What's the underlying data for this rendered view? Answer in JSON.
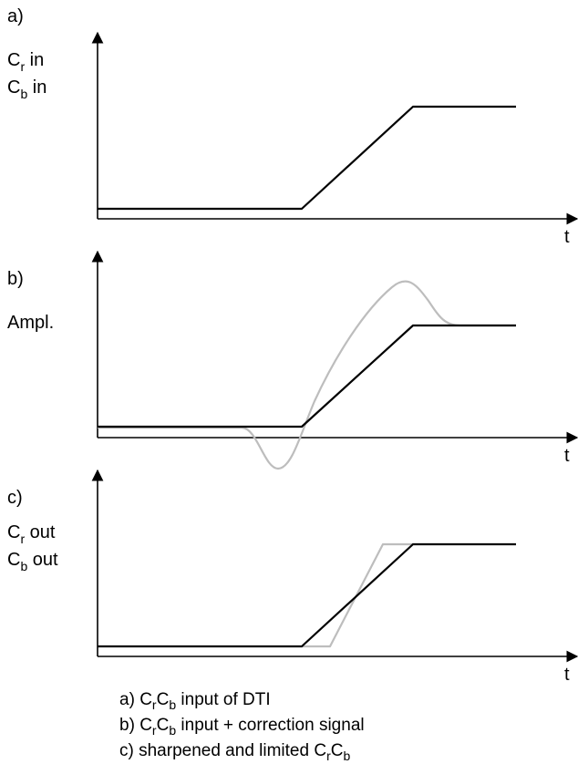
{
  "panels": [
    {
      "id": "a",
      "tag": "a)",
      "ylabel_lines": [
        {
          "base": "C",
          "sub": "r",
          "rest": " in"
        },
        {
          "base": "C",
          "sub": "b",
          "rest": " in"
        }
      ],
      "xlabel": "t"
    },
    {
      "id": "b",
      "tag": "b)",
      "ylabel_lines": [
        {
          "base": "Ampl.",
          "sub": "",
          "rest": ""
        }
      ],
      "xlabel": "t"
    },
    {
      "id": "c",
      "tag": "c)",
      "ylabel_lines": [
        {
          "base": "C",
          "sub": "r",
          "rest": " out"
        },
        {
          "base": "C",
          "sub": "b",
          "rest": " out"
        }
      ],
      "xlabel": "t"
    }
  ],
  "captions": [
    {
      "prefix": "a) ",
      "c1": "C",
      "s1": "r",
      "c2": "C",
      "s2": "b",
      "suffix": " input of DTI"
    },
    {
      "prefix": "b) ",
      "c1": "C",
      "s1": "r",
      "c2": "C",
      "s2": "b",
      "suffix": " input + correction signal"
    },
    {
      "prefix": "c) sharpened and limited ",
      "c1": "C",
      "s1": "r",
      "c2": "C",
      "s2": "b",
      "suffix": ""
    }
  ],
  "colors": {
    "signal": "#000000",
    "correction": "#bdbdbd"
  }
}
